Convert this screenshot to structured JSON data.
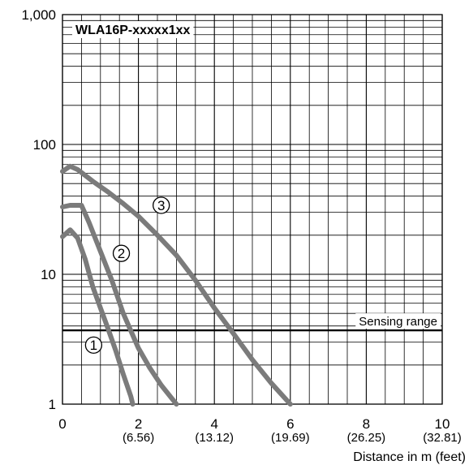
{
  "chart_data": {
    "type": "line",
    "title": "WLA16P-xxxxx1xx",
    "xlabel": "Distance in m (feet)",
    "ylabel": "",
    "xlim": [
      0,
      10
    ],
    "ylim": [
      1,
      1000
    ],
    "yscale": "log",
    "grid": true,
    "x_ticks": [
      {
        "value": 0,
        "label": "0",
        "sub": ""
      },
      {
        "value": 2,
        "label": "2",
        "sub": "(6.56)"
      },
      {
        "value": 4,
        "label": "4",
        "sub": "(13.12)"
      },
      {
        "value": 6,
        "label": "6",
        "sub": "(19.69)"
      },
      {
        "value": 8,
        "label": "8",
        "sub": "(26.25)"
      },
      {
        "value": 10,
        "label": "10",
        "sub": "(32.81)"
      }
    ],
    "y_ticks": [
      {
        "value": 1,
        "label": "1"
      },
      {
        "value": 10,
        "label": "10"
      },
      {
        "value": 100,
        "label": "100"
      },
      {
        "value": 1000,
        "label": "1,000"
      }
    ],
    "reference_line": {
      "y": 3.7,
      "label": "Sensing range"
    },
    "series": [
      {
        "name": "①",
        "marker_at": [
          0.82,
          2.85
        ],
        "points": [
          [
            0,
            19.5
          ],
          [
            0.2,
            22
          ],
          [
            0.4,
            19
          ],
          [
            0.6,
            13
          ],
          [
            0.8,
            8
          ],
          [
            1.0,
            5.5
          ],
          [
            1.2,
            3.8
          ],
          [
            1.4,
            2.6
          ],
          [
            1.6,
            1.7
          ],
          [
            1.8,
            1.15
          ],
          [
            1.85,
            1.0
          ]
        ]
      },
      {
        "name": "②",
        "marker_at": [
          1.55,
          14.5
        ],
        "points": [
          [
            0,
            33
          ],
          [
            0.2,
            34
          ],
          [
            0.5,
            34
          ],
          [
            0.7,
            25
          ],
          [
            1.0,
            15
          ],
          [
            1.3,
            9
          ],
          [
            1.6,
            5
          ],
          [
            2.0,
            2.7
          ],
          [
            2.3,
            1.9
          ],
          [
            2.6,
            1.4
          ],
          [
            3.0,
            1.0
          ]
        ]
      },
      {
        "name": "③",
        "marker_at": [
          2.6,
          34
        ],
        "points": [
          [
            0,
            62
          ],
          [
            0.2,
            68
          ],
          [
            0.4,
            64
          ],
          [
            0.8,
            52
          ],
          [
            1.2,
            43
          ],
          [
            1.6,
            35
          ],
          [
            2.0,
            28
          ],
          [
            2.5,
            20
          ],
          [
            3.0,
            14
          ],
          [
            3.5,
            9
          ],
          [
            4.0,
            5.5
          ],
          [
            4.5,
            3.5
          ],
          [
            5.0,
            2.2
          ],
          [
            5.5,
            1.45
          ],
          [
            6.0,
            1.0
          ]
        ]
      }
    ]
  },
  "colors": {
    "curve": "#7b7b7b",
    "grid": "#000000",
    "reference": "#000000"
  }
}
